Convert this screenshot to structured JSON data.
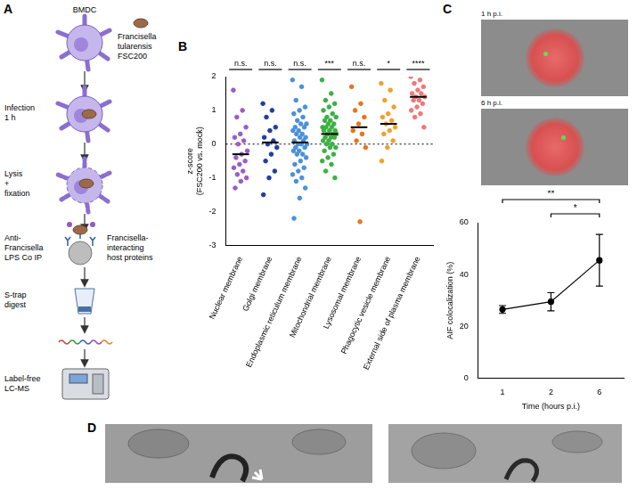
{
  "panel_labels": [
    "A",
    "B",
    "C",
    "D"
  ],
  "diagram": {
    "cell": "BMDC",
    "bacterium": [
      "Francisella",
      "tularensis",
      "FSC200"
    ],
    "steps": [
      [
        "Infection",
        "1 h"
      ],
      [
        "Lysis",
        "+",
        "fixation"
      ],
      [
        "Anti-",
        "Francisella",
        "LPS Co IP"
      ],
      [
        "S-trap",
        "digest"
      ],
      [
        "Label-free",
        "LC-MS"
      ]
    ],
    "coip_note": [
      "Francisella-",
      "interacting",
      "host proteins"
    ]
  },
  "images": [
    "1 h p.i.",
    "6 h p.i."
  ],
  "chart_data": [
    {
      "type": "scatter",
      "y_label": [
        "z-score",
        "(FSC200 vs. mock)"
      ],
      "categories": [
        "Nuclear membrane",
        "Golgi membrane",
        "Endoplasmic reticulum membrane",
        "Mitochondrial membrane",
        "Lysosomal membrane",
        "Phagocytic vesicle membrane",
        "External side of plasma membrane"
      ],
      "points": [
        [
          1.6,
          1.0,
          0.8,
          0.5,
          0.3,
          0.2,
          0.1,
          0.0,
          -0.2,
          -0.3,
          -0.4,
          -0.5,
          -0.6,
          -0.7,
          -0.8,
          -0.9,
          -1.0,
          -1.1,
          -1.3
        ],
        [
          1.2,
          1.0,
          0.8,
          0.5,
          0.4,
          0.2,
          0.1,
          0.0,
          -0.1,
          -0.3,
          -0.5,
          -0.8,
          -1.0,
          -1.5
        ],
        [
          1.9,
          1.7,
          1.3,
          1.1,
          1.0,
          0.9,
          0.8,
          0.7,
          0.6,
          0.6,
          0.5,
          0.5,
          0.4,
          0.4,
          0.3,
          0.3,
          0.2,
          0.2,
          0.1,
          0.1,
          0.0,
          0.0,
          0.0,
          -0.1,
          -0.1,
          -0.2,
          -0.2,
          -0.3,
          -0.3,
          -0.4,
          -0.5,
          -0.6,
          -0.7,
          -0.8,
          -0.9,
          -1.0,
          -1.1,
          -1.3,
          -1.6,
          -2.2
        ],
        [
          1.9,
          1.5,
          1.3,
          1.2,
          1.1,
          1.0,
          0.9,
          0.8,
          0.8,
          0.7,
          0.7,
          0.6,
          0.6,
          0.5,
          0.5,
          0.5,
          0.4,
          0.4,
          0.4,
          0.3,
          0.3,
          0.3,
          0.2,
          0.2,
          0.2,
          0.1,
          0.1,
          0.0,
          0.0,
          -0.1,
          -0.1,
          -0.2,
          -0.3,
          -0.4,
          -0.5,
          -0.6,
          -0.8,
          -1.0
        ],
        [
          1.7,
          1.2,
          1.0,
          0.8,
          0.6,
          0.4,
          0.3,
          0.1,
          -0.1,
          -2.3
        ],
        [
          1.8,
          1.6,
          1.3,
          1.1,
          0.9,
          0.8,
          0.7,
          0.6,
          0.5,
          0.4,
          0.3,
          0.1,
          -0.1,
          -0.5
        ],
        [
          2.0,
          1.9,
          1.8,
          1.7,
          1.6,
          1.5,
          1.5,
          1.4,
          1.4,
          1.3,
          1.3,
          1.2,
          1.1,
          1.0,
          0.9,
          0.8,
          0.5
        ]
      ],
      "means": [
        -0.3,
        0.05,
        0.05,
        0.3,
        0.5,
        0.6,
        1.4
      ],
      "significance": [
        "n.s.",
        "n.s.",
        "n.s.",
        "***",
        "n.s.",
        "*",
        "****"
      ],
      "colors": [
        "#9b5cc4",
        "#1f3f9f",
        "#4a90d9",
        "#3cb043",
        "#e8741c",
        "#f0a030",
        "#f07878"
      ],
      "ylim": [
        -3,
        2
      ],
      "yticks": [
        -3,
        -2,
        -1,
        0,
        1,
        2
      ],
      "reference_line": 0,
      "grid": false,
      "marker": "circle"
    },
    {
      "type": "line",
      "x_label": "Time (hours p.i.)",
      "y_label": "AIF colocalization (%)",
      "categories": [
        "1",
        "2",
        "6"
      ],
      "values": [
        26.5,
        29.5,
        45.5
      ],
      "errors": [
        1.5,
        3.5,
        10
      ],
      "ylim": [
        0,
        60
      ],
      "yticks": [
        0,
        20,
        40,
        60
      ],
      "color": "#000000",
      "marker": "circle",
      "grid": false,
      "comparisons": [
        {
          "from": "1",
          "to": "6",
          "label": "**"
        },
        {
          "from": "2",
          "to": "6",
          "label": "*"
        }
      ]
    }
  ]
}
